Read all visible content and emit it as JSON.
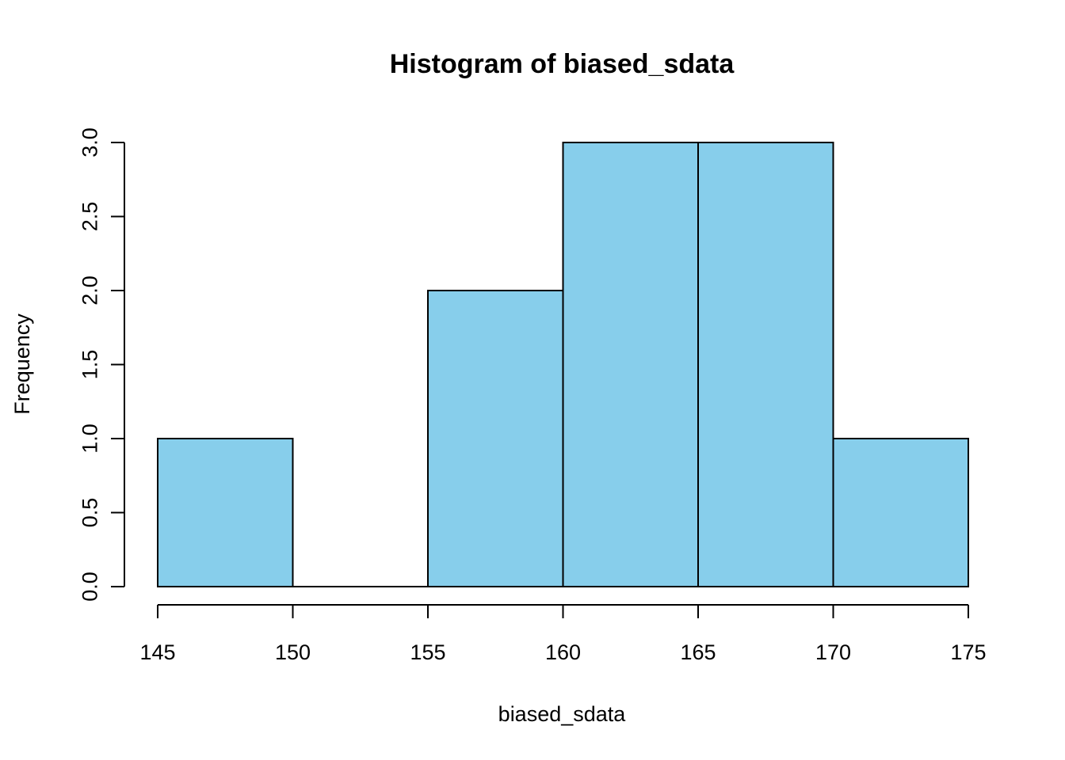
{
  "chart_data": {
    "type": "bar",
    "title": "Histogram of biased_sdata",
    "xlabel": "biased_sdata",
    "ylabel": "Frequency",
    "bins": [
      {
        "from": 145,
        "to": 150,
        "count": 1
      },
      {
        "from": 150,
        "to": 155,
        "count": 0
      },
      {
        "from": 155,
        "to": 160,
        "count": 2
      },
      {
        "from": 160,
        "to": 165,
        "count": 3
      },
      {
        "from": 165,
        "to": 170,
        "count": 3
      },
      {
        "from": 170,
        "to": 175,
        "count": 1
      }
    ],
    "xlim": [
      145,
      175
    ],
    "ylim": [
      0,
      3
    ],
    "x_ticks": [
      "145",
      "150",
      "155",
      "160",
      "165",
      "170",
      "175"
    ],
    "y_ticks": [
      "0.0",
      "0.5",
      "1.0",
      "1.5",
      "2.0",
      "2.5",
      "3.0"
    ],
    "grid": false,
    "bar_color": "#87CEEB",
    "edge_color": "#000000"
  }
}
